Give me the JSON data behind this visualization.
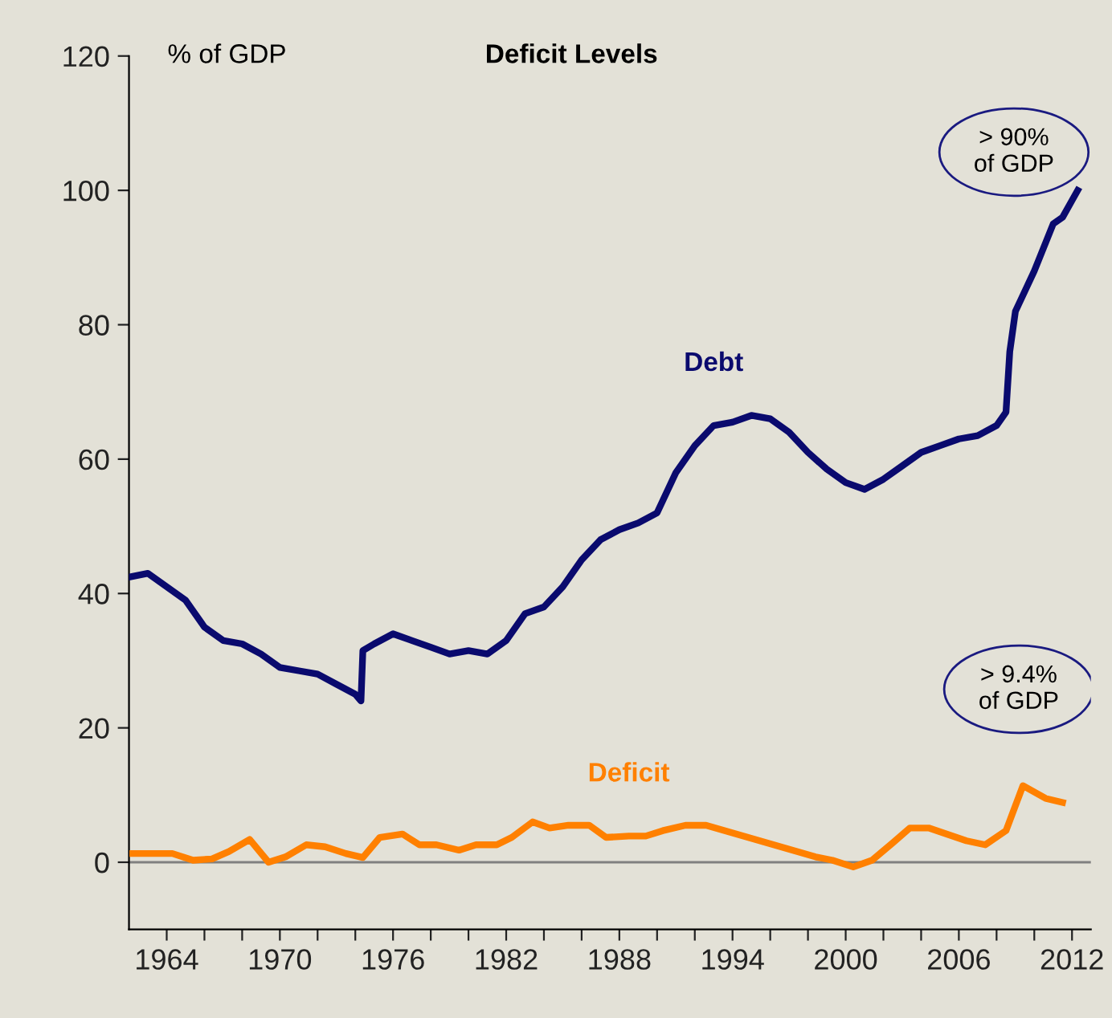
{
  "chart_data": {
    "type": "line",
    "title": "Deficit Levels",
    "ylabel": "% of GDP",
    "xlim": [
      1962,
      2013
    ],
    "ylim": [
      -10,
      120
    ],
    "yticks": [
      0,
      20,
      40,
      60,
      80,
      100,
      120
    ],
    "xticks": [
      1964,
      {
        "value": 1966,
        "label": null
      },
      {
        "value": 1968,
        "label": null
      },
      1970,
      {
        "value": 1972,
        "label": null
      },
      {
        "value": 1974,
        "label": null
      },
      1976,
      {
        "value": 1978,
        "label": null
      },
      {
        "value": 1980,
        "label": null
      },
      1982,
      {
        "value": 1984,
        "label": null
      },
      {
        "value": 1986,
        "label": null
      },
      1988,
      {
        "value": 1990,
        "label": null
      },
      {
        "value": 1992,
        "label": null
      },
      1994,
      {
        "value": 1996,
        "label": null
      },
      {
        "value": 1998,
        "label": null
      },
      2000,
      {
        "value": 2002,
        "label": null
      },
      {
        "value": 2004,
        "label": null
      },
      2006,
      {
        "value": 2008,
        "label": null
      },
      {
        "value": 2010,
        "label": null
      },
      2012
    ],
    "grid": false,
    "legend": false,
    "marker": "none",
    "line_style": "solid",
    "ref_lines": [
      {
        "axis": "y",
        "value": 0,
        "label": null,
        "color": "#808080"
      }
    ],
    "annotations": [
      "> 90%\nof GDP",
      "> 9.4%\nof GDP"
    ],
    "series": [
      {
        "name": "Debt",
        "color": "#0a0a6e",
        "x": [
          1962.1,
          1963,
          1964,
          1965,
          1966,
          1967,
          1968,
          1969,
          1970,
          1971,
          1972,
          1973,
          1974,
          1974.3,
          1974.4,
          1975,
          1976,
          1977,
          1978,
          1979,
          1980,
          1981,
          1982,
          1983,
          1984,
          1985,
          1986,
          1987,
          1988,
          1989,
          1990,
          1991,
          1992,
          1993,
          1994,
          1995,
          1996,
          1997,
          1998,
          1999,
          2000,
          2001,
          2002,
          2003,
          2004,
          2005,
          2006,
          2007,
          2008,
          2008.5,
          2008.7,
          2009,
          2010,
          2011,
          2011.5,
          2012.3
        ],
        "values": [
          42.5,
          43,
          41,
          39,
          35,
          33,
          32.5,
          31,
          29,
          28.5,
          28,
          26.5,
          25,
          24,
          31.5,
          32.5,
          34,
          33,
          32,
          31,
          31.5,
          31,
          33,
          37,
          38,
          41,
          45,
          48,
          49.5,
          50.5,
          52,
          58,
          62,
          65,
          65.5,
          66.5,
          66,
          64,
          61,
          58.5,
          56.5,
          55.5,
          57,
          59,
          61,
          62,
          63,
          63.5,
          65,
          67,
          76,
          82,
          88,
          95,
          96,
          100
        ]
      },
      {
        "name": "Deficit",
        "color": "#ff8000",
        "x": [
          1962.2,
          1964.3,
          1965.4,
          1966.4,
          1967.3,
          1968.4,
          1969.4,
          1970.3,
          1971.4,
          1972.4,
          1973.5,
          1974.4,
          1975.3,
          1976.5,
          1977.4,
          1978.3,
          1979.5,
          1980.4,
          1981.5,
          1982.3,
          1983.4,
          1984.3,
          1985.3,
          1986.4,
          1987.3,
          1988.5,
          1989.4,
          1990.3,
          1991.5,
          1992.6,
          1998.4,
          1999.3,
          2000.4,
          2001.4,
          2002.5,
          2003.4,
          2004.4,
          2006.4,
          2007.4,
          2008.5,
          2009.4,
          2010.6,
          2011.5
        ],
        "values": [
          1.3,
          1.3,
          0.3,
          0.5,
          1.6,
          3.4,
          0,
          0.8,
          2.6,
          2.3,
          1.3,
          0.7,
          3.7,
          4.2,
          2.6,
          2.6,
          1.8,
          2.6,
          2.6,
          3.7,
          6,
          5.1,
          5.5,
          5.5,
          3.7,
          3.9,
          3.9,
          4.7,
          5.5,
          5.5,
          0.8,
          0.3,
          -0.7,
          0.3,
          2.9,
          5.1,
          5.1,
          3.2,
          2.6,
          4.7,
          11.4,
          9.5,
          8.9
        ]
      }
    ]
  }
}
